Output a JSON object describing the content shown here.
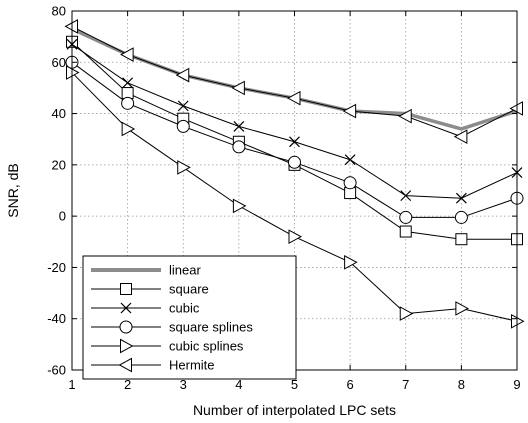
{
  "chart_data": {
    "type": "line",
    "xlabel": "Number of interpolated LPC sets",
    "ylabel": "SNR, dB",
    "xlim": [
      1,
      9
    ],
    "ylim": [
      -60,
      80
    ],
    "xticks": [
      1,
      2,
      3,
      4,
      5,
      6,
      7,
      8,
      9
    ],
    "yticks": [
      -60,
      -40,
      -20,
      0,
      20,
      40,
      60,
      80
    ],
    "grid": true,
    "legend_position": "bottom-left",
    "x": [
      1,
      2,
      3,
      4,
      5,
      6,
      7,
      8,
      9
    ],
    "series": [
      {
        "name": "linear",
        "marker": "none",
        "color": "#8c8c8c",
        "values": [
          73,
          63,
          55,
          50,
          46,
          41,
          40,
          34,
          41
        ]
      },
      {
        "name": "square",
        "marker": "square",
        "color": "#000000",
        "values": [
          68,
          48,
          38,
          29,
          20,
          9,
          -6,
          -9,
          -9
        ]
      },
      {
        "name": "cubic",
        "marker": "x",
        "color": "#000000",
        "values": [
          67,
          52,
          43,
          35,
          29,
          22,
          8,
          7,
          17
        ]
      },
      {
        "name": "square splines",
        "marker": "circle",
        "color": "#000000",
        "values": [
          60,
          44,
          35,
          27,
          21,
          13,
          -0.5,
          -0.5,
          7
        ]
      },
      {
        "name": "cubic splines",
        "marker": "triangle-right",
        "color": "#000000",
        "values": [
          56,
          34,
          19,
          4,
          -8,
          -18,
          -38,
          -36,
          -41
        ]
      },
      {
        "name": "Hermite",
        "marker": "triangle-left",
        "color": "#000000",
        "values": [
          74,
          63,
          55,
          50,
          46,
          41,
          39,
          31,
          42
        ]
      }
    ]
  }
}
